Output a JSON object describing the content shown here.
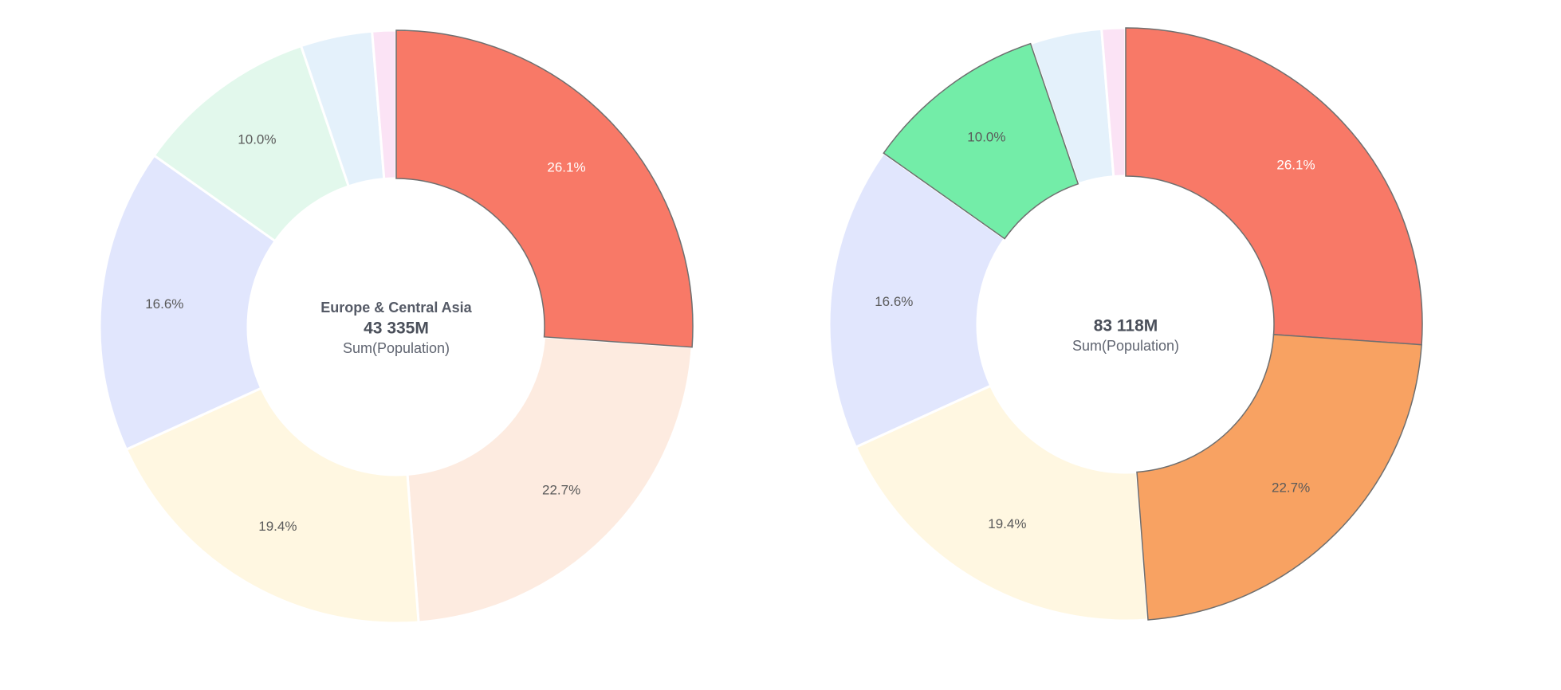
{
  "chart_data": [
    {
      "type": "pie",
      "variant": "donut",
      "center": {
        "title": "Europe & Central Asia",
        "value": "43 335M",
        "subtitle": "Sum(Population)"
      },
      "slices": [
        {
          "label": "26.1%",
          "value": 26.1,
          "color": "#f87967",
          "highlighted": true,
          "text_color": "#ffffff"
        },
        {
          "label": "22.7%",
          "value": 22.7,
          "color": "#fdebe0",
          "highlighted": false,
          "text_color": "#5a5a5a"
        },
        {
          "label": "19.4%",
          "value": 19.4,
          "color": "#fff7e1",
          "highlighted": false,
          "text_color": "#5a5a5a"
        },
        {
          "label": "16.6%",
          "value": 16.6,
          "color": "#e1e6fd",
          "highlighted": false,
          "text_color": "#5a5a5a"
        },
        {
          "label": "10.0%",
          "value": 10.0,
          "color": "#e2f8ec",
          "highlighted": false,
          "text_color": "#5a5a5a"
        },
        {
          "label": "",
          "value": 3.9,
          "color": "#e4f1fb",
          "highlighted": false,
          "text_color": "#5a5a5a"
        },
        {
          "label": "",
          "value": 1.3,
          "color": "#fbe3f5",
          "highlighted": false,
          "text_color": "#5a5a5a"
        }
      ]
    },
    {
      "type": "pie",
      "variant": "donut",
      "center": {
        "title": "",
        "value": "83 118M",
        "subtitle": "Sum(Population)"
      },
      "slices": [
        {
          "label": "26.1%",
          "value": 26.1,
          "color": "#f87967",
          "highlighted": true,
          "text_color": "#ffffff"
        },
        {
          "label": "22.7%",
          "value": 22.7,
          "color": "#f8a262",
          "highlighted": true,
          "text_color": "#5a5a5a"
        },
        {
          "label": "19.4%",
          "value": 19.4,
          "color": "#fff7e1",
          "highlighted": false,
          "text_color": "#5a5a5a"
        },
        {
          "label": "16.6%",
          "value": 16.6,
          "color": "#e1e6fd",
          "highlighted": false,
          "text_color": "#5a5a5a"
        },
        {
          "label": "10.0%",
          "value": 10.0,
          "color": "#73eda8",
          "highlighted": true,
          "text_color": "#5a5a5a"
        },
        {
          "label": "",
          "value": 3.9,
          "color": "#e4f1fb",
          "highlighted": false,
          "text_color": "#5a5a5a"
        },
        {
          "label": "",
          "value": 1.3,
          "color": "#fbe3f5",
          "highlighted": false,
          "text_color": "#5a5a5a"
        }
      ]
    }
  ]
}
